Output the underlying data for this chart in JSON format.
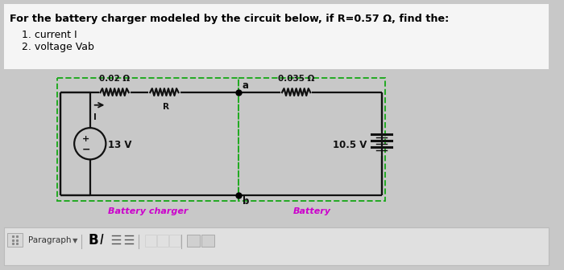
{
  "title": "For the battery charger modeled by the circuit below, if R=0.57 Ω, find the:",
  "item1": "1. current I",
  "item2": "2. voltage Vab",
  "bg_color": "#c8c8c8",
  "white_bg": "#f0f0f0",
  "resistor1_label": "0.02 Ω",
  "resistorR_label": "R",
  "resistor2_label": "0.035 Ω",
  "voltage1_label": "13 V",
  "voltage2_label": "10.5 V",
  "node_a_label": "a",
  "node_b_label": "b",
  "charger_label": "Battery charger",
  "battery_label": "Battery",
  "dashed_color": "#22aa22",
  "wire_color": "#111111",
  "label_color": "#cc00cc",
  "current_arrow_label": "I",
  "toolbar_bg": "#e0e0e0",
  "toolbar_border": "#bbbbbb"
}
